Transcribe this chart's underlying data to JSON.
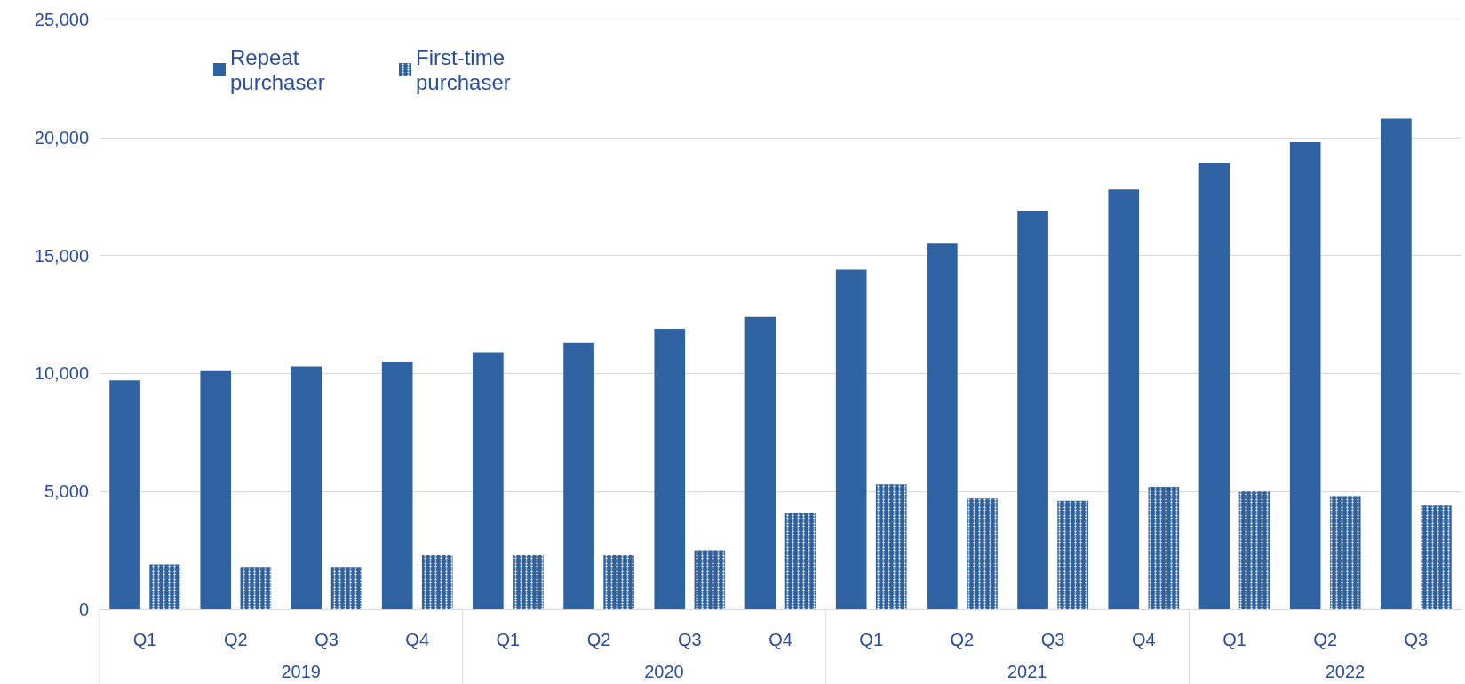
{
  "chart_data": {
    "type": "bar",
    "categories": [
      "Q1",
      "Q2",
      "Q3",
      "Q4",
      "Q1",
      "Q2",
      "Q3",
      "Q4",
      "Q1",
      "Q2",
      "Q3",
      "Q4",
      "Q1",
      "Q2",
      "Q3"
    ],
    "annotations": [
      "2019",
      "2020",
      "2021",
      "2022"
    ],
    "series": [
      {
        "name": "Repeat purchaser",
        "color": "#2e62a0",
        "values": [
          9700,
          10100,
          10300,
          10500,
          10900,
          11300,
          11900,
          12400,
          14400,
          15500,
          16900,
          17800,
          18900,
          19800,
          20800
        ]
      },
      {
        "name": "First-time purchaser",
        "color": "#2e62a0",
        "values": [
          1900,
          1800,
          1800,
          2300,
          2300,
          2300,
          2500,
          4100,
          5300,
          4700,
          4600,
          5200,
          5000,
          4800,
          4400
        ]
      }
    ],
    "ylim": [
      0,
      25000
    ],
    "yticks": [
      0,
      {
        "value": 5000,
        "label": "5,000"
      },
      {
        "value": 10000,
        "label": "10,000"
      },
      {
        "value": 15000,
        "label": "15,000"
      },
      {
        "value": 20000,
        "label": "20,000"
      },
      {
        "value": 25000,
        "label": "25,000"
      }
    ],
    "grid": "y",
    "legend": "top left"
  }
}
